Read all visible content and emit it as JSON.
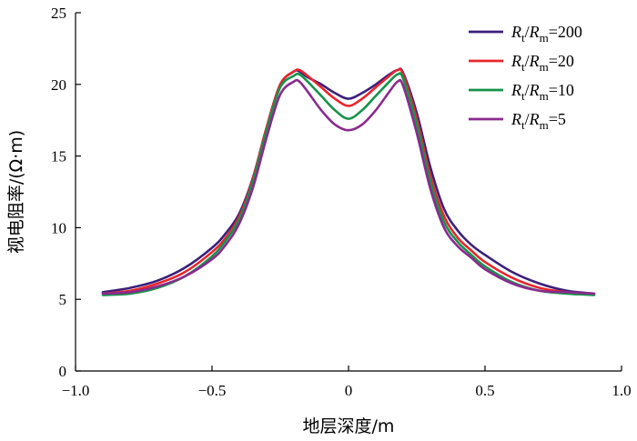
{
  "chart_data": {
    "type": "line",
    "xlabel": "地层深度/m",
    "ylabel": "视电阻率/(Ω·m)",
    "xlim": [
      -1.0,
      1.0
    ],
    "ylim": [
      0,
      25
    ],
    "xticks": [
      -1.0,
      -0.5,
      0,
      0.5,
      1.0
    ],
    "xtick_labels": [
      "−1.0",
      "−0.5",
      "0",
      "0.5",
      "1.0"
    ],
    "yticks": [
      0,
      5,
      10,
      15,
      20,
      25
    ],
    "ytick_labels": [
      "0",
      "5",
      "10",
      "15",
      "20",
      "25"
    ],
    "grid": false,
    "legend_position": "top-right",
    "series": [
      {
        "name": "Rt/Rm=200",
        "legend": {
          "r1": "R",
          "s1": "t",
          "sep": "/",
          "r2": "R",
          "s2": "m",
          "val": "=200"
        },
        "color": "#3b1f7a",
        "x": [
          -0.9,
          -0.8,
          -0.7,
          -0.6,
          -0.5,
          -0.45,
          -0.4,
          -0.35,
          -0.3,
          -0.25,
          -0.2,
          -0.18,
          -0.15,
          -0.1,
          -0.05,
          0,
          0.05,
          0.1,
          0.15,
          0.18,
          0.2,
          0.25,
          0.3,
          0.35,
          0.4,
          0.45,
          0.5,
          0.6,
          0.7,
          0.8,
          0.9
        ],
        "y": [
          5.5,
          5.8,
          6.3,
          7.2,
          8.6,
          9.6,
          11.0,
          13.5,
          17.0,
          20.0,
          20.9,
          20.9,
          20.5,
          20.0,
          19.4,
          19.0,
          19.4,
          20.0,
          20.7,
          21.0,
          20.8,
          18.0,
          14.2,
          11.3,
          9.8,
          8.8,
          8.1,
          6.9,
          6.1,
          5.6,
          5.4
        ]
      },
      {
        "name": "Rt/Rm=20",
        "legend": {
          "r1": "R",
          "s1": "t",
          "sep": "/",
          "r2": "R",
          "s2": "m",
          "val": "=20"
        },
        "color": "#e8262d",
        "x": [
          -0.9,
          -0.8,
          -0.7,
          -0.6,
          -0.5,
          -0.45,
          -0.4,
          -0.35,
          -0.3,
          -0.25,
          -0.2,
          -0.18,
          -0.15,
          -0.1,
          -0.05,
          0,
          0.05,
          0.1,
          0.15,
          0.18,
          0.2,
          0.25,
          0.3,
          0.35,
          0.4,
          0.45,
          0.5,
          0.6,
          0.7,
          0.8,
          0.9
        ],
        "y": [
          5.4,
          5.6,
          6.1,
          6.9,
          8.3,
          9.3,
          10.8,
          13.4,
          17.0,
          20.0,
          20.9,
          21.0,
          20.6,
          19.8,
          19.0,
          18.5,
          19.0,
          19.8,
          20.6,
          21.0,
          20.7,
          17.6,
          13.6,
          10.8,
          9.3,
          8.4,
          7.6,
          6.5,
          5.8,
          5.5,
          5.4
        ]
      },
      {
        "name": "Rt/Rm=10",
        "legend": {
          "r1": "R",
          "s1": "t",
          "sep": "/",
          "r2": "R",
          "s2": "m",
          "val": "=10"
        },
        "color": "#16934a",
        "x": [
          -0.9,
          -0.8,
          -0.7,
          -0.6,
          -0.5,
          -0.45,
          -0.4,
          -0.35,
          -0.3,
          -0.25,
          -0.2,
          -0.18,
          -0.15,
          -0.1,
          -0.05,
          0,
          0.05,
          0.1,
          0.15,
          0.18,
          0.2,
          0.25,
          0.3,
          0.35,
          0.4,
          0.45,
          0.5,
          0.6,
          0.7,
          0.8,
          0.9
        ],
        "y": [
          5.3,
          5.4,
          5.8,
          6.6,
          8.0,
          9.1,
          10.6,
          13.2,
          16.8,
          19.8,
          20.6,
          20.7,
          20.2,
          19.2,
          18.2,
          17.6,
          18.2,
          19.2,
          20.2,
          20.7,
          20.4,
          17.2,
          13.2,
          10.4,
          9.0,
          8.1,
          7.3,
          6.2,
          5.6,
          5.4,
          5.3
        ]
      },
      {
        "name": "Rt/Rm=5",
        "legend": {
          "r1": "R",
          "s1": "t",
          "sep": "/",
          "r2": "R",
          "s2": "m",
          "val": "=5"
        },
        "color": "#8a2a8e",
        "x": [
          -0.9,
          -0.8,
          -0.7,
          -0.6,
          -0.5,
          -0.45,
          -0.4,
          -0.35,
          -0.3,
          -0.25,
          -0.2,
          -0.18,
          -0.15,
          -0.1,
          -0.05,
          0,
          0.05,
          0.1,
          0.15,
          0.18,
          0.2,
          0.25,
          0.3,
          0.35,
          0.4,
          0.45,
          0.5,
          0.6,
          0.7,
          0.8,
          0.9
        ],
        "y": [
          5.4,
          5.5,
          5.9,
          6.6,
          7.8,
          8.8,
          10.3,
          12.8,
          16.3,
          19.3,
          20.2,
          20.2,
          19.5,
          18.2,
          17.2,
          16.8,
          17.2,
          18.2,
          19.5,
          20.2,
          19.9,
          16.6,
          12.7,
          10.0,
          8.7,
          7.9,
          7.1,
          6.1,
          5.6,
          5.5,
          5.4
        ]
      }
    ]
  }
}
